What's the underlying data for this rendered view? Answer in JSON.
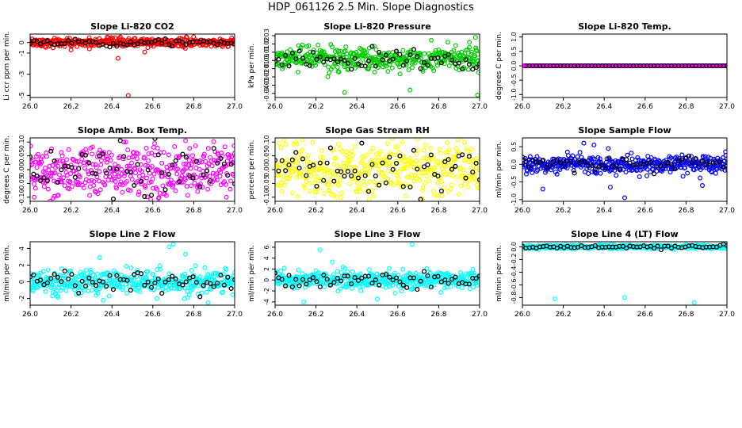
{
  "title": "HDP_061126  2.5 Min. Slope Diagnostics",
  "colors": {
    "red": "#ff0000",
    "green": "#00cc00",
    "magenta": "#ff00ff",
    "yellow": "#ffff00",
    "blue": "#0000ff",
    "cyan": "#00ffff",
    "black": "#000000"
  },
  "chart_data": [
    {
      "type": "scatter",
      "title": "Slope Li-820 CO2",
      "ylabel": "Li ccr ppm per min.",
      "xlim": [
        26.0,
        27.0
      ],
      "ylim": [
        -5.2,
        0.8
      ],
      "xticks": [
        26.0,
        26.2,
        26.4,
        26.6,
        26.8,
        27.0
      ],
      "xtick_labels": [
        "26.0",
        "26.2",
        "26.4",
        "26.6",
        "26.8",
        "27.0"
      ],
      "yticks": [
        0,
        -1,
        -3,
        -5
      ],
      "ytick_labels": [
        "0",
        "-1",
        "-3",
        "-5"
      ],
      "color": "red",
      "spread": 0.2,
      "center": 0,
      "outliers": [
        {
          "x": 26.48,
          "y": -5.0
        },
        {
          "x": 26.43,
          "y": -1.5
        },
        {
          "x": 26.56,
          "y": -0.9
        },
        {
          "x": 26.2,
          "y": -0.7
        },
        {
          "x": 26.29,
          "y": -0.6
        }
      ]
    },
    {
      "type": "scatter",
      "title": "Slope Li-820 Pressure",
      "ylabel": "kPa per min.",
      "xlim": [
        26.0,
        27.0
      ],
      "ylim": [
        -0.045,
        0.032
      ],
      "xticks": [
        26.0,
        26.2,
        26.4,
        26.6,
        26.8,
        27.0
      ],
      "xtick_labels": [
        "26.0",
        "26.2",
        "26.4",
        "26.6",
        "26.8",
        "27.0"
      ],
      "yticks": [
        0.03,
        0.02,
        0.01,
        0.0,
        -0.01,
        -0.02,
        -0.03,
        -0.04
      ],
      "ytick_labels": [
        "0.03",
        "0.02",
        "0.01",
        "0.00",
        "-0.01",
        "-0.02",
        "-0.03",
        "-0.04"
      ],
      "color": "green",
      "spread": 0.007,
      "center": 0.002,
      "outliers": [
        {
          "x": 26.34,
          "y": -0.039
        },
        {
          "x": 26.66,
          "y": -0.036
        },
        {
          "x": 26.99,
          "y": -0.042
        },
        {
          "x": 26.98,
          "y": 0.028
        },
        {
          "x": 26.95,
          "y": 0.022
        }
      ]
    },
    {
      "type": "scatter",
      "title": "Slope Li-820 Temp.",
      "ylabel": "degrees C per min.",
      "xlim": [
        26.0,
        27.0
      ],
      "ylim": [
        -1.1,
        1.1
      ],
      "xticks": [
        26.0,
        26.2,
        26.4,
        26.6,
        26.8,
        27.0
      ],
      "xtick_labels": [
        "26.0",
        "26.2",
        "26.4",
        "26.6",
        "26.8",
        "27.0"
      ],
      "yticks": [
        1.0,
        0.5,
        0.0,
        -0.5,
        -1.0
      ],
      "ytick_labels": [
        "1.0",
        "0.5",
        "0.0",
        "-0.5",
        "-1.0"
      ],
      "color": "magenta",
      "spread": 0.0,
      "center": 0,
      "outliers": []
    },
    {
      "type": "scatter",
      "title": "Slope Amb. Box Temp.",
      "ylabel": "degrees C per min.",
      "xlim": [
        26.0,
        27.0
      ],
      "ylim": [
        -0.115,
        0.115
      ],
      "xticks": [
        26.0,
        26.2,
        26.4,
        26.6,
        26.8,
        27.0
      ],
      "xtick_labels": [
        "26.0",
        "26.2",
        "26.4",
        "26.6",
        "26.8",
        "27.0"
      ],
      "yticks": [
        0.1,
        0.05,
        0.0,
        -0.05,
        -0.1
      ],
      "ytick_labels": [
        "0.10",
        "0.05",
        "0.00",
        "-0.05",
        "-0.10"
      ],
      "color": "magenta",
      "spread": 0.05,
      "center": 0,
      "outliers": [
        {
          "x": 26.76,
          "y": 0.105
        },
        {
          "x": 26.02,
          "y": -0.1
        }
      ]
    },
    {
      "type": "scatter",
      "title": "Slope Gas Stream RH",
      "ylabel": "percent per min.",
      "xlim": [
        26.0,
        27.0
      ],
      "ylim": [
        -0.115,
        0.115
      ],
      "xticks": [
        26.0,
        26.2,
        26.4,
        26.6,
        26.8,
        27.0
      ],
      "xtick_labels": [
        "26.0",
        "26.2",
        "26.4",
        "26.6",
        "26.8",
        "27.0"
      ],
      "yticks": [
        0.1,
        0.05,
        0.0,
        -0.05,
        -0.1
      ],
      "ytick_labels": [
        "0.10",
        "0.05",
        "0.00",
        "-0.05",
        "-0.10"
      ],
      "color": "yellow",
      "spread": 0.05,
      "center": 0,
      "outliers": [
        {
          "x": 26.1,
          "y": 0.1
        },
        {
          "x": 26.72,
          "y": -0.105
        }
      ]
    },
    {
      "type": "scatter",
      "title": "Slope Sample Flow",
      "ylabel": "ml/min per min.",
      "xlim": [
        26.0,
        27.0
      ],
      "ylim": [
        -1.05,
        0.75
      ],
      "xticks": [
        26.0,
        26.2,
        26.4,
        26.6,
        26.8,
        27.0
      ],
      "xtick_labels": [
        "26.0",
        "26.2",
        "26.4",
        "26.6",
        "26.8",
        "27.0"
      ],
      "yticks": [
        0.5,
        0.0,
        -0.5,
        -1.0
      ],
      "ytick_labels": [
        "0.5",
        "0.0",
        "-0.5",
        "-1.0"
      ],
      "color": "blue",
      "spread": 0.12,
      "center": 0,
      "outliers": [
        {
          "x": 26.3,
          "y": 0.6
        },
        {
          "x": 26.35,
          "y": 0.55
        },
        {
          "x": 26.22,
          "y": 0.35
        },
        {
          "x": 26.42,
          "y": 0.45
        },
        {
          "x": 26.1,
          "y": -0.7
        },
        {
          "x": 26.5,
          "y": -0.95
        },
        {
          "x": 26.43,
          "y": -0.65
        },
        {
          "x": 26.88,
          "y": -0.6
        }
      ]
    },
    {
      "type": "scatter",
      "title": "Slope Line 2 Flow",
      "ylabel": "ml/min per min.",
      "xlim": [
        26.0,
        27.0
      ],
      "ylim": [
        -2.8,
        4.8
      ],
      "xticks": [
        26.0,
        26.2,
        26.4,
        26.6,
        26.8,
        27.0
      ],
      "xtick_labels": [
        "26.0",
        "26.2",
        "26.4",
        "26.6",
        "26.8",
        "27.0"
      ],
      "yticks": [
        4,
        2,
        0,
        -2
      ],
      "ytick_labels": [
        "4",
        "2",
        "0",
        "-2"
      ],
      "color": "cyan",
      "spread": 0.7,
      "center": 0,
      "outliers": [
        {
          "x": 26.7,
          "y": 4.5
        },
        {
          "x": 26.68,
          "y": 4.2
        },
        {
          "x": 26.76,
          "y": 3.3
        },
        {
          "x": 26.34,
          "y": 2.9
        },
        {
          "x": 26.77,
          "y": -1.9
        },
        {
          "x": 26.87,
          "y": -2.5
        },
        {
          "x": 26.62,
          "y": -2.0
        }
      ]
    },
    {
      "type": "scatter",
      "title": "Slope Line 3 Flow",
      "ylabel": "ml/min per min.",
      "xlim": [
        26.0,
        27.0
      ],
      "ylim": [
        -4.6,
        7.0
      ],
      "xticks": [
        26.0,
        26.2,
        26.4,
        26.6,
        26.8,
        27.0
      ],
      "xtick_labels": [
        "26.0",
        "26.2",
        "26.4",
        "26.6",
        "26.8",
        "27.0"
      ],
      "yticks": [
        6,
        4,
        2,
        0,
        -2,
        -4
      ],
      "ytick_labels": [
        "6",
        "4",
        "2",
        "0",
        "-2",
        "-4"
      ],
      "color": "cyan",
      "spread": 0.8,
      "center": 0,
      "outliers": [
        {
          "x": 26.67,
          "y": 6.5
        },
        {
          "x": 26.22,
          "y": 5.5
        },
        {
          "x": 26.14,
          "y": -4.0
        },
        {
          "x": 26.5,
          "y": -3.5
        },
        {
          "x": 26.28,
          "y": 3.3
        }
      ]
    },
    {
      "type": "scatter",
      "title": "Slope Line 4 (LT) Flow",
      "ylabel": "ml/min per min.",
      "xlim": [
        26.0,
        27.0
      ],
      "ylim": [
        -0.92,
        0.08
      ],
      "xticks": [
        26.0,
        26.2,
        26.4,
        26.6,
        26.8,
        27.0
      ],
      "xtick_labels": [
        "26.0",
        "26.2",
        "26.4",
        "26.6",
        "26.8",
        "27.0"
      ],
      "yticks": [
        0.0,
        -0.2,
        -0.4,
        -0.6,
        -0.8
      ],
      "ytick_labels": [
        "0.0",
        "-0.2",
        "-0.4",
        "-0.6",
        "-0.8"
      ],
      "color": "cyan",
      "spread": 0.015,
      "center": 0,
      "outliers": [
        {
          "x": 26.16,
          "y": -0.82
        },
        {
          "x": 26.5,
          "y": -0.8
        },
        {
          "x": 26.84,
          "y": -0.88
        }
      ]
    }
  ]
}
